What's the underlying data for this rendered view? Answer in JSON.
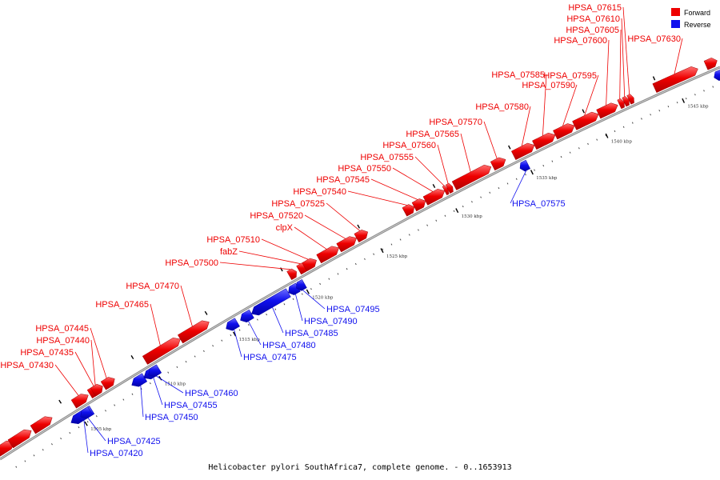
{
  "caption": "Helicobacter pylori SouthAfrica7, complete genome. - 0..1653913",
  "colors": {
    "forward": "#ee0000",
    "reverse": "#1010ee",
    "backbone": "#888888"
  },
  "legend": [
    {
      "key": "forward",
      "label": "Forward"
    },
    {
      "key": "reverse",
      "label": "Reverse"
    }
  ],
  "genes": [
    {
      "name": "HPSA_07420",
      "strand": "reverse"
    },
    {
      "name": "HPSA_07425",
      "strand": "reverse"
    },
    {
      "name": "HPSA_07430",
      "strand": "forward"
    },
    {
      "name": "HPSA_07435",
      "strand": "forward"
    },
    {
      "name": "HPSA_07440",
      "strand": "forward"
    },
    {
      "name": "HPSA_07445",
      "strand": "forward"
    },
    {
      "name": "HPSA_07450",
      "strand": "reverse"
    },
    {
      "name": "HPSA_07455",
      "strand": "reverse"
    },
    {
      "name": "HPSA_07460",
      "strand": "reverse"
    },
    {
      "name": "HPSA_07465",
      "strand": "forward"
    },
    {
      "name": "HPSA_07470",
      "strand": "forward"
    },
    {
      "name": "HPSA_07475",
      "strand": "reverse"
    },
    {
      "name": "HPSA_07480",
      "strand": "reverse"
    },
    {
      "name": "HPSA_07485",
      "strand": "reverse"
    },
    {
      "name": "HPSA_07490",
      "strand": "reverse"
    },
    {
      "name": "HPSA_07495",
      "strand": "reverse"
    },
    {
      "name": "HPSA_07500",
      "strand": "forward"
    },
    {
      "name": "fabZ",
      "strand": "forward"
    },
    {
      "name": "HPSA_07510",
      "strand": "forward"
    },
    {
      "name": "clpX",
      "strand": "forward"
    },
    {
      "name": "HPSA_07520",
      "strand": "forward"
    },
    {
      "name": "HPSA_07525",
      "strand": "forward"
    },
    {
      "name": "HPSA_07540",
      "strand": "forward"
    },
    {
      "name": "HPSA_07545",
      "strand": "forward"
    },
    {
      "name": "HPSA_07550",
      "strand": "forward"
    },
    {
      "name": "HPSA_07555",
      "strand": "forward"
    },
    {
      "name": "HPSA_07560",
      "strand": "forward"
    },
    {
      "name": "HPSA_07565",
      "strand": "forward"
    },
    {
      "name": "HPSA_07570",
      "strand": "forward"
    },
    {
      "name": "HPSA_07575",
      "strand": "reverse"
    },
    {
      "name": "HPSA_07580",
      "strand": "forward"
    },
    {
      "name": "HPSA_07585",
      "strand": "forward"
    },
    {
      "name": "HPSA_07590",
      "strand": "forward"
    },
    {
      "name": "HPSA_07595",
      "strand": "forward"
    },
    {
      "name": "HPSA_07600",
      "strand": "forward"
    },
    {
      "name": "HPSA_07605",
      "strand": "forward"
    },
    {
      "name": "HPSA_07610",
      "strand": "forward"
    },
    {
      "name": "HPSA_07615",
      "strand": "forward"
    },
    {
      "name": "HPSA_07630",
      "strand": "forward"
    }
  ],
  "ticks": [
    "1505 kbp",
    "1510 kbp",
    "1515 kbp",
    "1520 kbp",
    "1525 kbp",
    "1530 kbp",
    "1535 kbp",
    "1540 kbp",
    "1545 kbp"
  ]
}
